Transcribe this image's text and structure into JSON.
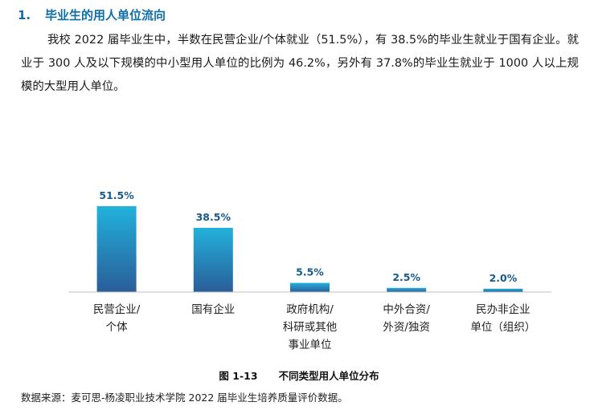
{
  "section": {
    "number": "1.",
    "title": "毕业生的用人单位流向"
  },
  "paragraph": "我校 2022 届毕业生中，半数在民营企业/个体就业（51.5%），有 38.5%的毕业生就业于国有企业。就业于 300 人及以下规模的中小型用人单位的比例为 46.2%，另外有 37.8%的毕业生就业于 1000 人以上规模的大型用人单位。",
  "caption": {
    "figure_no": "图 1-13",
    "title": "不同类型用人单位分布"
  },
  "source": "数据来源：麦可思-杨凌职业技术学院 2022 届毕业生培养质量评价数据。",
  "chart_data": {
    "type": "bar",
    "title": "不同类型用人单位分布",
    "categories": [
      [
        "民营企业/",
        "个体"
      ],
      [
        "国有企业"
      ],
      [
        "政府机构/",
        "科研或其他",
        "事业单位"
      ],
      [
        "中外合资/",
        "外资/独资"
      ],
      [
        "民办非企业",
        "单位（组织）"
      ]
    ],
    "values": [
      51.5,
      38.5,
      5.5,
      2.5,
      2.0
    ],
    "value_labels": [
      "51.5%",
      "38.5%",
      "5.5%",
      "2.5%",
      "2.0%"
    ],
    "xlabel": "",
    "ylabel": "",
    "ylim": [
      0,
      100
    ],
    "grid": false,
    "bar_gradient": [
      "#22b2dc",
      "#2a5d98"
    ]
  }
}
